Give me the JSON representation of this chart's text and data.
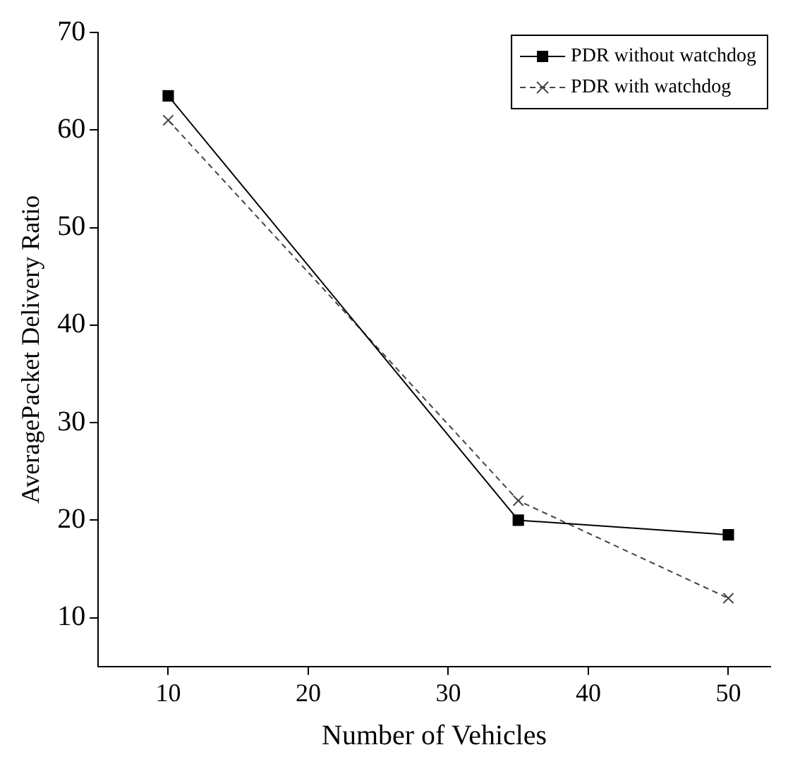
{
  "chart_data": {
    "type": "line",
    "xlabel": "Number of Vehicles",
    "ylabel": "AveragePacket Delivery Ratio",
    "x": [
      10,
      35,
      50
    ],
    "series": [
      {
        "name": "PDR without watchdog",
        "color": "#000000",
        "values": [
          63.5,
          20,
          18.5
        ],
        "marker": "square",
        "line_style": "solid"
      },
      {
        "name": "PDR with watchdog",
        "color": "#444444",
        "values": [
          61,
          22,
          12
        ],
        "marker": "cross",
        "line_style": "dashed"
      }
    ],
    "xlim": [
      5,
      53
    ],
    "xticks": [
      10,
      20,
      30,
      40,
      50
    ],
    "ylim": [
      5,
      70
    ],
    "yticks": [
      10,
      20,
      30,
      40,
      50,
      60,
      70
    ],
    "grid": false,
    "legend": "top right"
  }
}
